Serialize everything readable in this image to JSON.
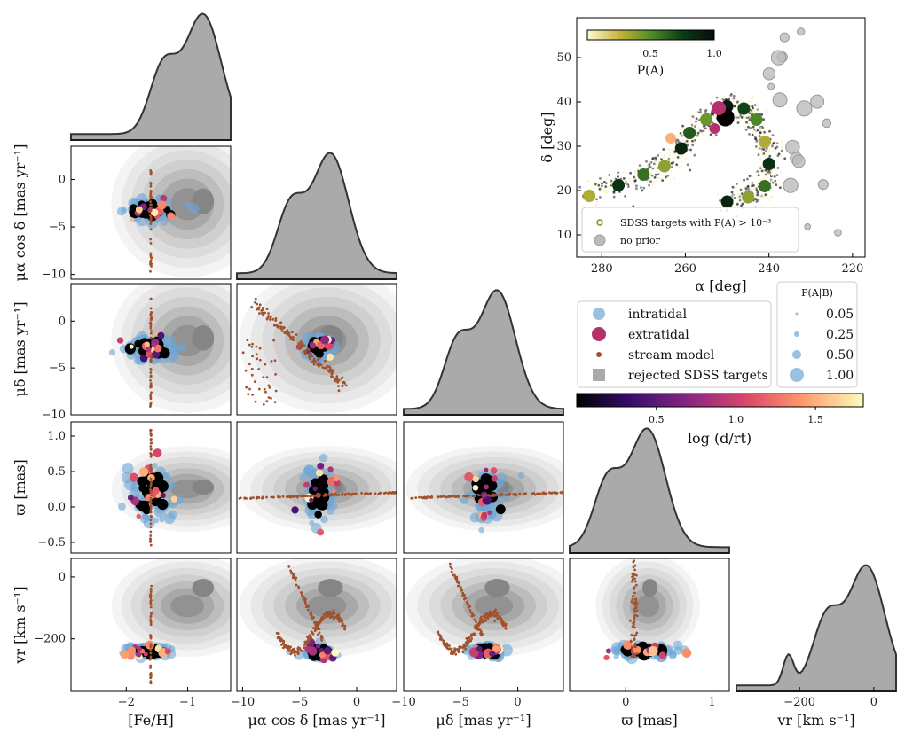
{
  "chart_data": {
    "type": "corner-scatter",
    "variables": [
      {
        "key": "feh",
        "label": "[Fe/H]",
        "range": [
          -2.9,
          -0.3
        ],
        "ticks": [
          -2,
          -1
        ]
      },
      {
        "key": "pmra",
        "label": "μα cos δ [mas yr⁻¹]",
        "range": [
          -10.5,
          3.5
        ],
        "ticks": [
          -10,
          -5,
          0
        ]
      },
      {
        "key": "pmdec",
        "label": "μδ [mas yr⁻¹]",
        "range": [
          -10,
          4
        ],
        "ticks": [
          -10,
          -5,
          0
        ]
      },
      {
        "key": "plx",
        "label": "ϖ [mas]",
        "range": [
          -0.65,
          1.2
        ],
        "ticks": [
          0,
          1
        ],
        "yticks": [
          -0.5,
          0.0,
          0.5,
          1.0
        ]
      },
      {
        "key": "vr",
        "label": "vr [km s⁻¹]",
        "range": [
          -370,
          60
        ],
        "ticks": [
          -200,
          0
        ],
        "yticks": [
          -200,
          0
        ]
      }
    ],
    "ylabels": [
      "μα cos δ [mas yr⁻¹]",
      "μδ [mas yr⁻¹]",
      "ϖ [mas]",
      "vr [km s⁻¹]"
    ],
    "pmra_yticks": [
      0,
      -5,
      -10
    ],
    "pmdec_yticks": [
      0,
      -5,
      -10
    ],
    "histogram_peaks": {
      "feh": -0.75,
      "pmra": -2.3,
      "pmdec": -1.8,
      "plx": 0.25,
      "vr": -20
    },
    "cluster_center": {
      "feh": -1.6,
      "pmra": -3.3,
      "pmdec": -2.8,
      "plx": 0.2,
      "vr": -240
    },
    "sky_plot": {
      "xlabel": "α [deg]",
      "ylabel": "δ [deg]",
      "xlim": [
        286,
        217
      ],
      "ylim": [
        5,
        59
      ],
      "xticks": [
        280,
        260,
        240,
        220
      ],
      "yticks": [
        10,
        20,
        30,
        40,
        50
      ],
      "colorbar": {
        "label": "P(A)",
        "ticks": [
          "0.5",
          "1.0"
        ],
        "range": [
          0,
          1
        ]
      },
      "legend": [
        "SDSS targets with P(A) > 10⁻³",
        "no prior"
      ],
      "stream_track": [
        [
          283,
          18.8
        ],
        [
          276,
          21.2
        ],
        [
          270,
          23.6
        ],
        [
          265,
          25.5
        ],
        [
          261,
          29.5
        ],
        [
          259,
          33
        ],
        [
          255,
          36
        ],
        [
          250,
          39
        ],
        [
          246,
          38.5
        ],
        [
          243,
          36
        ],
        [
          241,
          31
        ],
        [
          240,
          26
        ],
        [
          241,
          21
        ],
        [
          245,
          18.5
        ],
        [
          250,
          17.5
        ]
      ]
    },
    "legend_items": [
      "intratidal",
      "extratidal",
      "stream model",
      "rejected SDSS targets"
    ],
    "size_legend": {
      "title": "P(A|B)",
      "values": [
        "0.05",
        "0.25",
        "0.50",
        "1.00"
      ]
    },
    "distance_colorbar": {
      "label": "log (d/rt)",
      "ticks": [
        "0.5",
        "1.0",
        "1.5"
      ],
      "range": [
        0,
        1.8
      ]
    },
    "colors": {
      "intratidal": "#6ea7d6",
      "extratidal": "#b5316e",
      "stream": "#a0522d",
      "rejected": "#aaaaaa",
      "kde": "#444444",
      "core": "#000000"
    }
  }
}
